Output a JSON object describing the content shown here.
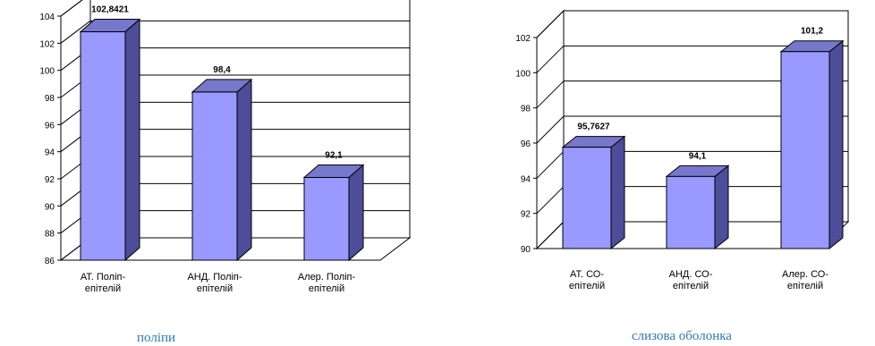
{
  "chart_data": [
    {
      "type": "bar",
      "caption": "поліпи",
      "categories": [
        "АТ. Поліп-епітелій",
        "АНД. Поліп-епітелій",
        "Алер. Поліп-епітелій"
      ],
      "category_lines": [
        [
          "АТ. Поліп-",
          "епітелій"
        ],
        [
          "АНД. Поліп-",
          "епітелій"
        ],
        [
          "Алер. Поліп-",
          "епітелій"
        ]
      ],
      "values": [
        102.8421,
        98.4,
        92.1
      ],
      "value_labels": [
        "102,8421",
        "98,4",
        "92,1"
      ],
      "ylim": [
        86,
        104
      ],
      "yticks": [
        86,
        88,
        90,
        92,
        94,
        96,
        98,
        100,
        102,
        104
      ],
      "grid": true,
      "legend": "none",
      "bar_color": "#9999ff"
    },
    {
      "type": "bar",
      "caption": "слизова оболонка",
      "categories": [
        "АТ. СО-епітелій",
        "АНД. СО-епітелій",
        "Алер. СО-епітелій"
      ],
      "category_lines": [
        [
          "АТ. СО-",
          "епітелій"
        ],
        [
          "АНД. СО-",
          "епітелій"
        ],
        [
          "Алер. СО-",
          "епітелій"
        ]
      ],
      "values": [
        95.7627,
        94.1,
        101.2
      ],
      "value_labels": [
        "95,7627",
        "94,1",
        "101,2"
      ],
      "ylim": [
        90,
        102
      ],
      "yticks": [
        90,
        92,
        94,
        96,
        98,
        100,
        102
      ],
      "grid": true,
      "legend": "none",
      "bar_color": "#9999ff"
    }
  ]
}
